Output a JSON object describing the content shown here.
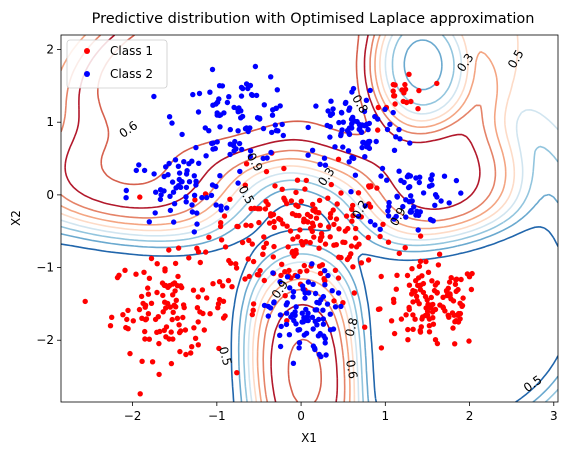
{
  "chart_data": {
    "type": "scatter",
    "title": "Predictive distribution with Optimised Laplace approximation",
    "xlabel": "X1",
    "ylabel": "X2",
    "xlim": [
      -2.85,
      3.05
    ],
    "ylim": [
      -2.85,
      2.2
    ],
    "xticks": [
      -2,
      -1,
      0,
      1,
      2,
      3
    ],
    "yticks": [
      -2,
      -1,
      0,
      1,
      2
    ],
    "tick_labels_x": [
      "−2",
      "−1",
      "0",
      "1",
      "2",
      "3"
    ],
    "tick_labels_y": [
      "−2",
      "−1",
      "0",
      "1",
      "2"
    ],
    "legend_position": "top-left",
    "series": [
      {
        "name": "Class 1",
        "color": "#ff0000",
        "clusters": [
          {
            "cx": 0.0,
            "cy": -0.55,
            "sx": 0.55,
            "sy": 0.45,
            "n": 200
          },
          {
            "cx": -1.55,
            "cy": -1.55,
            "sx": 0.35,
            "sy": 0.35,
            "n": 120
          },
          {
            "cx": 1.55,
            "cy": -1.55,
            "sx": 0.3,
            "sy": 0.3,
            "n": 120
          },
          {
            "cx": 1.25,
            "cy": 1.4,
            "sx": 0.15,
            "sy": 0.2,
            "n": 20
          }
        ]
      },
      {
        "name": "Class 2",
        "color": "#0000ff",
        "clusters": [
          {
            "cx": -0.75,
            "cy": 1.05,
            "sx": 0.35,
            "sy": 0.3,
            "n": 90
          },
          {
            "cx": -1.45,
            "cy": 0.05,
            "sx": 0.3,
            "sy": 0.25,
            "n": 60
          },
          {
            "cx": 0.65,
            "cy": 0.9,
            "sx": 0.3,
            "sy": 0.3,
            "n": 80
          },
          {
            "cx": 1.3,
            "cy": 0.0,
            "sx": 0.25,
            "sy": 0.25,
            "n": 60
          },
          {
            "cx": 0.0,
            "cy": -1.65,
            "sx": 0.2,
            "sy": 0.3,
            "n": 90
          }
        ]
      }
    ],
    "contour_levels": [
      0.1,
      0.2,
      0.3,
      0.4,
      0.5,
      0.6,
      0.7,
      0.8,
      0.9
    ],
    "contour_labels": [
      {
        "text": "0.6",
        "x": -2.05,
        "y": 0.9,
        "rot": -35
      },
      {
        "text": "0.3",
        "x": 1.95,
        "y": 1.82,
        "rot": -55
      },
      {
        "text": "0.5",
        "x": 2.55,
        "y": 1.87,
        "rot": -60
      },
      {
        "text": "0.8",
        "x": 0.7,
        "y": 1.25,
        "rot": 60
      },
      {
        "text": "0.9",
        "x": -0.55,
        "y": 0.45,
        "rot": 60
      },
      {
        "text": "0.5",
        "x": -0.65,
        "y": 0.0,
        "rot": 60
      },
      {
        "text": "0.3",
        "x": 0.3,
        "y": 0.25,
        "rot": -55
      },
      {
        "text": "0.2",
        "x": 0.7,
        "y": -0.2,
        "rot": -60
      },
      {
        "text": "0.9",
        "x": 1.15,
        "y": -0.3,
        "rot": -60
      },
      {
        "text": "0.9",
        "x": -0.25,
        "y": -1.3,
        "rot": -55
      },
      {
        "text": "0.8",
        "x": 0.6,
        "y": -1.82,
        "rot": -75
      },
      {
        "text": "0.5",
        "x": -0.9,
        "y": -2.22,
        "rot": 75
      },
      {
        "text": "0.6",
        "x": 0.6,
        "y": -2.4,
        "rot": 80
      },
      {
        "text": "0.5",
        "x": 2.75,
        "y": -2.6,
        "rot": -35
      }
    ]
  }
}
